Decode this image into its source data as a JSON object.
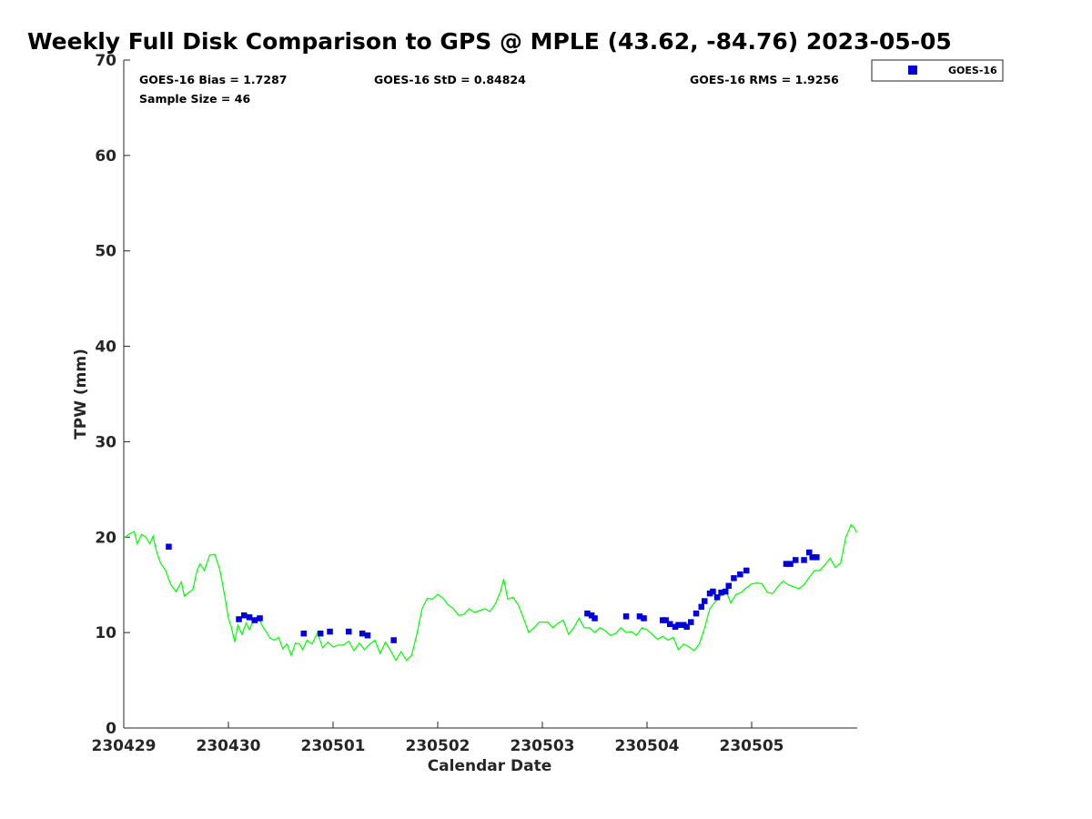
{
  "colors": {
    "gps_line": "#00ff00",
    "goes_marker": "#0000dd",
    "axis": "#262626"
  },
  "chart_data": {
    "type": "scatter",
    "title": "Weekly Full Disk Comparison to GPS @ MPLE (43.62, -84.76) 2023-05-05",
    "xlabel": "Calendar Date",
    "ylabel": "TPW (mm)",
    "xlim": [
      0,
      7
    ],
    "ylim": [
      0,
      70
    ],
    "x_unit": "days since 230429",
    "x_ticks": [
      {
        "value": 0,
        "label": "230429"
      },
      {
        "value": 1,
        "label": "230430"
      },
      {
        "value": 2,
        "label": "230501"
      },
      {
        "value": 3,
        "label": "230502"
      },
      {
        "value": 4,
        "label": "230503"
      },
      {
        "value": 5,
        "label": "230504"
      },
      {
        "value": 6,
        "label": "230505"
      }
    ],
    "y_ticks": [
      {
        "value": 0,
        "label": "0"
      },
      {
        "value": 10,
        "label": "10"
      },
      {
        "value": 20,
        "label": "20"
      },
      {
        "value": 30,
        "label": "30"
      },
      {
        "value": 40,
        "label": "40"
      },
      {
        "value": 50,
        "label": "50"
      },
      {
        "value": 60,
        "label": "60"
      },
      {
        "value": 70,
        "label": "70"
      }
    ],
    "stats": {
      "bias": "GOES-16 Bias = 1.7287",
      "std": "GOES-16 StD = 0.84824",
      "rms": "GOES-16 RMS = 1.9256",
      "sample_size": "Sample Size = 46"
    },
    "legend": {
      "position": "top-right",
      "entries": [
        {
          "name": "GOES-16",
          "marker": "square"
        }
      ]
    },
    "series": [
      {
        "name": "GPS",
        "kind": "line",
        "points": [
          [
            0.0,
            19.9
          ],
          [
            0.05,
            20.3
          ],
          [
            0.1,
            20.6
          ],
          [
            0.13,
            19.3
          ],
          [
            0.17,
            20.3
          ],
          [
            0.21,
            20.0
          ],
          [
            0.25,
            19.3
          ],
          [
            0.28,
            20.1
          ],
          [
            0.31,
            18.6
          ],
          [
            0.35,
            17.3
          ],
          [
            0.4,
            16.5
          ],
          [
            0.45,
            15.0
          ],
          [
            0.5,
            14.3
          ],
          [
            0.55,
            15.3
          ],
          [
            0.58,
            13.8
          ],
          [
            0.62,
            14.2
          ],
          [
            0.66,
            14.5
          ],
          [
            0.7,
            16.5
          ],
          [
            0.73,
            17.2
          ],
          [
            0.77,
            16.5
          ],
          [
            0.82,
            18.1
          ],
          [
            0.87,
            18.2
          ],
          [
            0.92,
            16.5
          ],
          [
            0.97,
            13.5
          ],
          [
            1.0,
            11.5
          ],
          [
            1.03,
            10.5
          ],
          [
            1.06,
            9.0
          ],
          [
            1.09,
            10.8
          ],
          [
            1.13,
            9.8
          ],
          [
            1.17,
            11.0
          ],
          [
            1.2,
            10.3
          ],
          [
            1.24,
            11.3
          ],
          [
            1.28,
            11.7
          ],
          [
            1.32,
            10.8
          ],
          [
            1.36,
            10.1
          ],
          [
            1.4,
            9.4
          ],
          [
            1.44,
            9.2
          ],
          [
            1.48,
            9.5
          ],
          [
            1.52,
            8.3
          ],
          [
            1.56,
            8.8
          ],
          [
            1.6,
            7.6
          ],
          [
            1.64,
            8.9
          ],
          [
            1.68,
            8.8
          ],
          [
            1.71,
            8.2
          ],
          [
            1.75,
            9.2
          ],
          [
            1.8,
            8.8
          ],
          [
            1.85,
            10.0
          ],
          [
            1.9,
            8.4
          ],
          [
            1.95,
            9.0
          ],
          [
            2.0,
            8.5
          ],
          [
            2.05,
            8.7
          ],
          [
            2.1,
            8.7
          ],
          [
            2.15,
            9.1
          ],
          [
            2.2,
            8.1
          ],
          [
            2.25,
            8.9
          ],
          [
            2.3,
            8.2
          ],
          [
            2.35,
            8.8
          ],
          [
            2.4,
            9.2
          ],
          [
            2.45,
            7.8
          ],
          [
            2.5,
            9.0
          ],
          [
            2.55,
            8.1
          ],
          [
            2.6,
            7.1
          ],
          [
            2.65,
            8.0
          ],
          [
            2.7,
            7.1
          ],
          [
            2.75,
            7.6
          ],
          [
            2.8,
            9.8
          ],
          [
            2.85,
            12.5
          ],
          [
            2.9,
            13.6
          ],
          [
            2.95,
            13.5
          ],
          [
            3.0,
            14.0
          ],
          [
            3.05,
            13.6
          ],
          [
            3.1,
            12.9
          ],
          [
            3.15,
            12.5
          ],
          [
            3.2,
            11.8
          ],
          [
            3.25,
            11.9
          ],
          [
            3.3,
            12.5
          ],
          [
            3.35,
            12.1
          ],
          [
            3.4,
            12.3
          ],
          [
            3.45,
            12.5
          ],
          [
            3.5,
            12.2
          ],
          [
            3.55,
            13.0
          ],
          [
            3.6,
            14.3
          ],
          [
            3.63,
            15.6
          ],
          [
            3.67,
            13.5
          ],
          [
            3.72,
            13.7
          ],
          [
            3.77,
            12.9
          ],
          [
            3.82,
            11.5
          ],
          [
            3.87,
            10.0
          ],
          [
            3.92,
            10.5
          ],
          [
            3.97,
            11.1
          ],
          [
            4.05,
            11.1
          ],
          [
            4.1,
            10.5
          ],
          [
            4.15,
            11.0
          ],
          [
            4.2,
            11.3
          ],
          [
            4.25,
            9.8
          ],
          [
            4.3,
            10.5
          ],
          [
            4.35,
            11.5
          ],
          [
            4.4,
            10.5
          ],
          [
            4.45,
            10.5
          ],
          [
            4.5,
            10.0
          ],
          [
            4.55,
            10.5
          ],
          [
            4.6,
            10.2
          ],
          [
            4.65,
            9.7
          ],
          [
            4.7,
            9.9
          ],
          [
            4.75,
            10.5
          ],
          [
            4.8,
            10.0
          ],
          [
            4.85,
            10.1
          ],
          [
            4.9,
            9.7
          ],
          [
            4.95,
            10.5
          ],
          [
            5.0,
            10.3
          ],
          [
            5.05,
            9.8
          ],
          [
            5.1,
            9.3
          ],
          [
            5.15,
            9.6
          ],
          [
            5.2,
            9.2
          ],
          [
            5.25,
            9.5
          ],
          [
            5.3,
            8.2
          ],
          [
            5.35,
            8.8
          ],
          [
            5.4,
            8.5
          ],
          [
            5.45,
            8.1
          ],
          [
            5.5,
            8.8
          ],
          [
            5.55,
            10.5
          ],
          [
            5.6,
            12.5
          ],
          [
            5.65,
            13.2
          ],
          [
            5.7,
            13.8
          ],
          [
            5.75,
            14.5
          ],
          [
            5.8,
            13.1
          ],
          [
            5.85,
            14.0
          ],
          [
            5.9,
            14.2
          ],
          [
            5.95,
            14.7
          ],
          [
            6.0,
            15.1
          ],
          [
            6.05,
            15.2
          ],
          [
            6.1,
            15.1
          ],
          [
            6.15,
            14.2
          ],
          [
            6.2,
            14.1
          ],
          [
            6.25,
            14.8
          ],
          [
            6.3,
            15.4
          ],
          [
            6.35,
            15.0
          ],
          [
            6.4,
            14.8
          ],
          [
            6.45,
            14.6
          ],
          [
            6.5,
            15.0
          ],
          [
            6.55,
            15.8
          ],
          [
            6.6,
            16.5
          ],
          [
            6.65,
            16.5
          ],
          [
            6.7,
            17.1
          ],
          [
            6.75,
            17.8
          ],
          [
            6.8,
            16.8
          ],
          [
            6.85,
            17.3
          ],
          [
            6.9,
            20.0
          ],
          [
            6.95,
            21.3
          ],
          [
            6.98,
            21.0
          ],
          [
            7.0,
            20.5
          ]
        ]
      },
      {
        "name": "GOES-16",
        "kind": "scatter",
        "points": [
          [
            0.43,
            19.0
          ],
          [
            1.1,
            11.4
          ],
          [
            1.15,
            11.8
          ],
          [
            1.2,
            11.6
          ],
          [
            1.25,
            11.3
          ],
          [
            1.3,
            11.5
          ],
          [
            1.72,
            9.9
          ],
          [
            1.88,
            9.9
          ],
          [
            1.97,
            10.1
          ],
          [
            2.15,
            10.1
          ],
          [
            2.28,
            9.9
          ],
          [
            2.33,
            9.7
          ],
          [
            2.58,
            9.2
          ],
          [
            4.43,
            12.0
          ],
          [
            4.47,
            11.8
          ],
          [
            4.5,
            11.5
          ],
          [
            4.8,
            11.7
          ],
          [
            4.93,
            11.7
          ],
          [
            4.97,
            11.5
          ],
          [
            5.15,
            11.3
          ],
          [
            5.18,
            11.3
          ],
          [
            5.22,
            10.9
          ],
          [
            5.27,
            10.6
          ],
          [
            5.3,
            10.8
          ],
          [
            5.35,
            10.8
          ],
          [
            5.38,
            10.6
          ],
          [
            5.42,
            11.1
          ],
          [
            5.47,
            12.0
          ],
          [
            5.52,
            12.7
          ],
          [
            5.55,
            13.3
          ],
          [
            5.6,
            14.1
          ],
          [
            5.63,
            14.3
          ],
          [
            5.67,
            13.7
          ],
          [
            5.71,
            14.2
          ],
          [
            5.75,
            14.3
          ],
          [
            5.78,
            14.9
          ],
          [
            5.83,
            15.7
          ],
          [
            5.89,
            16.1
          ],
          [
            5.95,
            16.5
          ],
          [
            6.33,
            17.2
          ],
          [
            6.37,
            17.2
          ],
          [
            6.42,
            17.6
          ],
          [
            6.5,
            17.6
          ],
          [
            6.55,
            18.4
          ],
          [
            6.58,
            17.9
          ],
          [
            6.62,
            17.9
          ]
        ]
      }
    ]
  }
}
